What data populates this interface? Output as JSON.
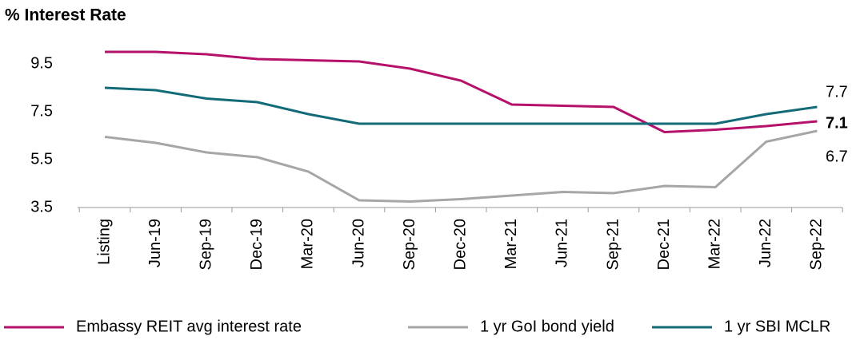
{
  "chart_data": {
    "type": "line",
    "title": "% Interest Rate",
    "categories": [
      "Listing",
      "Jun-19",
      "Sep-19",
      "Dec-19",
      "Mar-20",
      "Jun-20",
      "Sep-20",
      "Dec-20",
      "Mar-21",
      "Jun-21",
      "Sep-21",
      "Dec-21",
      "Mar-22",
      "Jun-22",
      "Sep-22"
    ],
    "series": [
      {
        "name": "Embassy REIT avg interest rate",
        "color": "#b5106a",
        "bold_end_label": true,
        "values": [
          10.0,
          10.0,
          9.9,
          9.7,
          9.65,
          9.6,
          9.3,
          8.8,
          7.8,
          7.75,
          7.7,
          6.65,
          6.75,
          6.9,
          7.1
        ]
      },
      {
        "name": "1 yr GoI bond yield",
        "color": "#a6a6a6",
        "bold_end_label": false,
        "values": [
          6.45,
          6.2,
          5.8,
          5.6,
          5.0,
          3.8,
          3.75,
          3.85,
          4.0,
          4.15,
          4.1,
          4.4,
          4.35,
          6.25,
          6.7
        ]
      },
      {
        "name": "1 yr SBI MCLR",
        "color": "#136b78",
        "bold_end_label": false,
        "values": [
          8.5,
          8.4,
          8.05,
          7.9,
          7.4,
          7.0,
          7.0,
          7.0,
          7.0,
          7.0,
          7.0,
          7.0,
          7.0,
          7.4,
          7.7
        ]
      }
    ],
    "ylim": [
      3.5,
      10.5
    ],
    "yticks": [
      3.5,
      5.5,
      7.5,
      9.5
    ],
    "grid": false
  }
}
